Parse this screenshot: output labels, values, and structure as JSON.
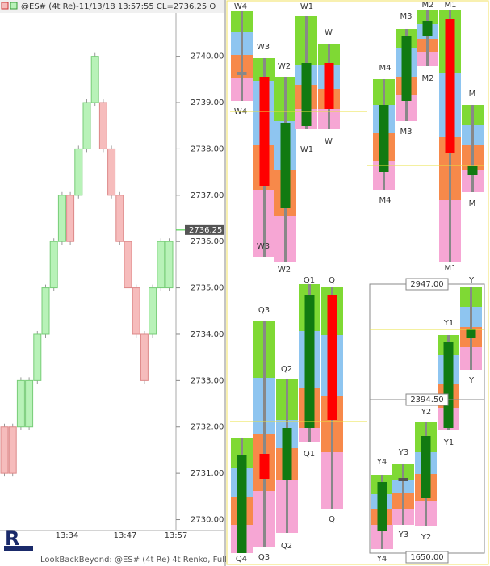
{
  "header": {
    "title": "@ES# (4t Re)-11/13/18 13:57:55 CL=2736.25 O"
  },
  "chart_data": {
    "type": "renko",
    "open": [
      2732,
      2732,
      2732,
      2732,
      2733,
      2734,
      2735,
      2736,
      2737,
      2737,
      2738,
      2739,
      2739,
      2738,
      2737,
      2736,
      2735,
      2734,
      2734,
      2735,
      2735
    ],
    "close": [
      2731,
      2731,
      2733,
      2733,
      2734,
      2735,
      2736,
      2737,
      2736,
      2738,
      2739,
      2740,
      2738,
      2737,
      2736,
      2735,
      2734,
      2733,
      2735,
      2736,
      2736
    ],
    "colors": {
      "up": "#b8f2b8",
      "down": "#f6bcbc"
    },
    "ylim": [
      2729.8,
      2740.9
    ],
    "yticks": [
      {
        "value": 2740,
        "label": "2740.00"
      },
      {
        "value": 2739,
        "label": "2739.00"
      },
      {
        "value": 2738,
        "label": "2738.00"
      },
      {
        "value": 2737,
        "label": "2737.00"
      },
      {
        "value": 2736,
        "label": "2736.00"
      },
      {
        "value": 2735,
        "label": "2735.00"
      },
      {
        "value": 2734,
        "label": "2734.00"
      },
      {
        "value": 2733,
        "label": "2733.00"
      },
      {
        "value": 2732,
        "label": "2732.00"
      },
      {
        "value": 2731,
        "label": "2731.00"
      },
      {
        "value": 2730,
        "label": "2730.00"
      }
    ],
    "last": {
      "value": 2736.25,
      "label": "2736.25"
    },
    "x_labels": [
      "13:34",
      "13:47",
      "13:57"
    ]
  },
  "footer": {
    "text": "LookBackBeyond: @ES# (4t Re) 4t Renko, Full"
  },
  "panels": [
    {
      "bars": [
        {
          "labels": [
            "W4",
            "W4"
          ]
        },
        {
          "labels": [
            "W3",
            "W3"
          ]
        },
        {
          "labels": [
            "W2",
            "W2"
          ]
        },
        {
          "labels": [
            "W1",
            "W1"
          ]
        },
        {
          "labels": [
            "W",
            "W"
          ]
        }
      ]
    },
    {
      "bars": [
        {
          "labels": [
            "M4",
            "M4"
          ]
        },
        {
          "labels": [
            "M3",
            "M3"
          ]
        },
        {
          "labels": [
            "M2",
            "M2"
          ]
        },
        {
          "labels": [
            "M1",
            "M1"
          ]
        },
        {
          "labels": [
            "M",
            "M"
          ]
        }
      ]
    },
    {
      "bars": [
        {
          "labels": [
            "Q4"
          ]
        },
        {
          "labels": [
            "Q3",
            "Q3"
          ]
        },
        {
          "labels": [
            "Q2",
            "Q2"
          ]
        },
        {
          "labels": [
            "Q1",
            "Q1"
          ]
        },
        {
          "labels": [
            "Q",
            "Q"
          ]
        }
      ]
    },
    {
      "bars": [
        {
          "labels": [
            "Y4",
            "Y4"
          ]
        },
        {
          "labels": [
            "Y3",
            "Y3"
          ]
        },
        {
          "labels": [
            "Y2",
            "Y2"
          ]
        },
        {
          "labels": [
            "Y1",
            "Y1"
          ]
        },
        {
          "labels": [
            "Y",
            "Y"
          ]
        }
      ],
      "price_boxes": [
        "2947.00",
        "2394.50",
        "1650.00"
      ]
    }
  ]
}
